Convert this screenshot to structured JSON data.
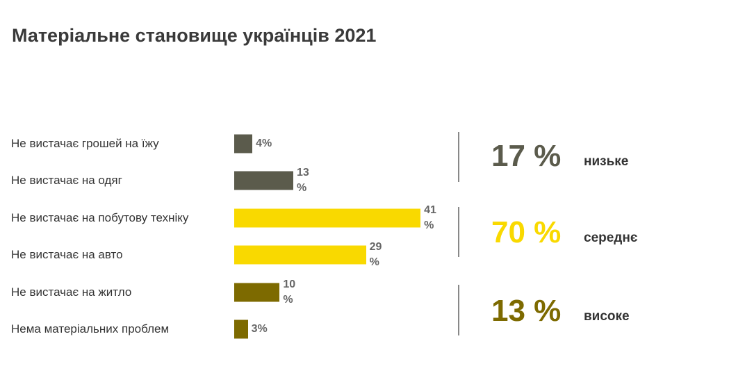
{
  "chart_data": {
    "type": "bar",
    "title": "Матеріальне становище українців 2021",
    "categories": [
      "Не вистачає грошей на їжу",
      "Не вистачає на одяг",
      "Не вистачає на побутову техніку",
      "Не вистачає на авто",
      "Не вистачає на житло",
      "Нема матеріальних проблем"
    ],
    "values": [
      4,
      13,
      41,
      29,
      10,
      3
    ],
    "value_labels": [
      "4%",
      "13 %",
      "41 %",
      "29 %",
      "10 %",
      "3%"
    ],
    "colors": [
      "#5b5b4c",
      "#5b5b4c",
      "#f9d900",
      "#f9d900",
      "#7d6a00",
      "#7d6a00"
    ],
    "summary": {
      "values": [
        17,
        70,
        13
      ],
      "value_labels": [
        "17 %",
        "70 %",
        "13 %"
      ],
      "names": [
        "низьке",
        "середнє",
        "високе"
      ],
      "colors": [
        "#5b5b4c",
        "#f9d900",
        "#7d6a00"
      ]
    }
  }
}
